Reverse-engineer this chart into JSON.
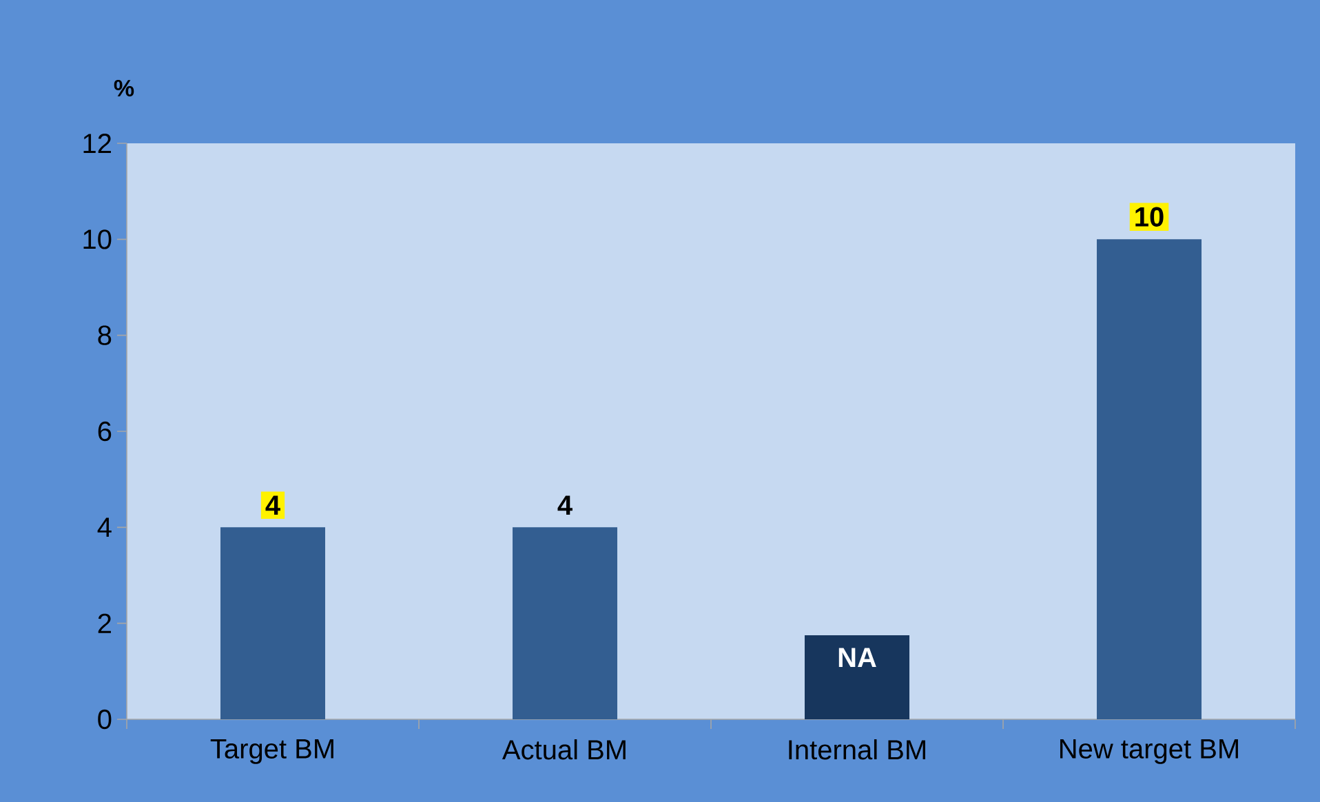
{
  "chart_data": {
    "type": "bar",
    "ylabel": "%",
    "categories": [
      "Target BM",
      "Actual BM",
      "Internal BM",
      "New target BM"
    ],
    "values": [
      4,
      4,
      1.75,
      10
    ],
    "colors": [
      "#335e91",
      "#335e91",
      "#17365d",
      "#335e91"
    ],
    "value_labels": [
      "4",
      "4",
      "NA",
      "10"
    ],
    "ylim": [
      0,
      12
    ],
    "yticks": [
      0,
      2,
      4,
      6,
      8,
      10,
      12
    ],
    "grid": false
  }
}
